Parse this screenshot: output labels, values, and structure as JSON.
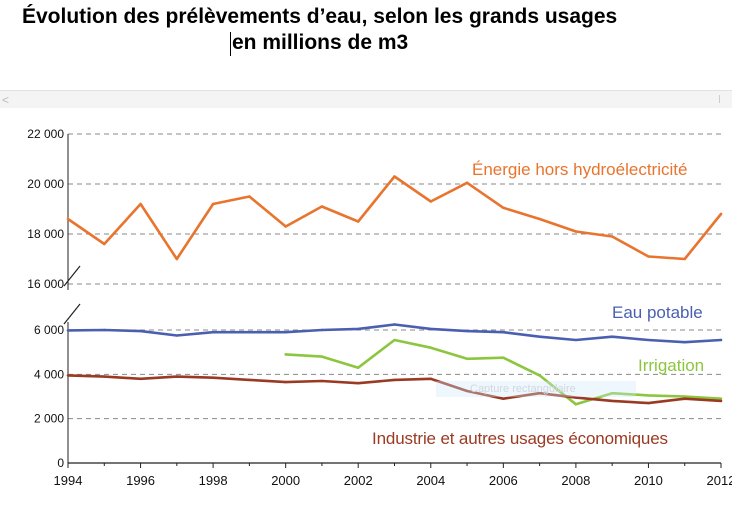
{
  "chart_data": {
    "type": "line",
    "title": "Évolution des prélèvements d’eau, selon les grands usages",
    "subtitle": "en millions de m3",
    "x_ticks": [
      1994,
      1996,
      1998,
      2000,
      2002,
      2004,
      2006,
      2008,
      2010,
      2012
    ],
    "y_ticks": [
      0,
      2000,
      4000,
      6000,
      16000,
      18000,
      20000,
      22000
    ],
    "y_tick_labels": [
      "0",
      "2 000",
      "4 000",
      "6 000",
      "16 000",
      "18 000",
      "20 000",
      "22 000"
    ],
    "y_axis_break": [
      6000,
      16000
    ],
    "xlim": [
      1994,
      2012.2
    ],
    "ylim": [
      0,
      22000
    ],
    "grid": true,
    "series": [
      {
        "name": "Énergie hors hydroélectricité",
        "color": "#e8742e",
        "x": [
          1994,
          1995,
          1996,
          1997,
          1998,
          1999,
          2000,
          2001,
          2002,
          2003,
          2004,
          2005,
          2006,
          2007,
          2008,
          2009,
          2010,
          2011,
          2012
        ],
        "y": [
          18600,
          17600,
          19200,
          17000,
          19200,
          19500,
          18300,
          19100,
          18500,
          20300,
          19300,
          20050,
          19050,
          18600,
          18100,
          17900,
          17100,
          17000,
          18800
        ]
      },
      {
        "name": "Eau potable",
        "color": "#4a5fb0",
        "x": [
          1994,
          1995,
          1996,
          1997,
          1998,
          1999,
          2000,
          2001,
          2002,
          2003,
          2004,
          2005,
          2006,
          2007,
          2008,
          2009,
          2010,
          2011,
          2012
        ],
        "y": [
          5980,
          6000,
          5950,
          5750,
          5900,
          5900,
          5900,
          6000,
          6050,
          6250,
          6050,
          5950,
          5900,
          5700,
          5550,
          5700,
          5550,
          5450,
          5550
        ]
      },
      {
        "name": "Irrigation",
        "color": "#8cc63f",
        "x": [
          2000,
          2001,
          2002,
          2003,
          2004,
          2005,
          2006,
          2007,
          2008,
          2009,
          2010,
          2011,
          2012
        ],
        "y": [
          4900,
          4800,
          4300,
          5550,
          5200,
          4700,
          4750,
          3950,
          2650,
          3150,
          3050,
          3000,
          2900
        ]
      },
      {
        "name": "Industrie et autres usages économiques",
        "color": "#9b3a22",
        "x": [
          1994,
          1995,
          1996,
          1997,
          1998,
          1999,
          2000,
          2001,
          2002,
          2003,
          2004,
          2005,
          2006,
          2007,
          2008,
          2009,
          2010,
          2011,
          2012
        ],
        "y": [
          3950,
          3900,
          3800,
          3900,
          3850,
          3750,
          3650,
          3700,
          3600,
          3750,
          3800,
          3250,
          2900,
          3150,
          2950,
          2800,
          2700,
          2900,
          2800
        ]
      }
    ]
  },
  "overlay": {
    "capture_label": "Capture rectangulaire"
  },
  "toolbar": {
    "back_arrow_glyph": "<"
  }
}
